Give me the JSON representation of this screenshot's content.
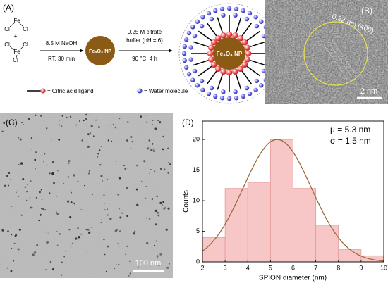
{
  "panel_a": {
    "label": "(A)",
    "reactant_atoms": [
      "Cl",
      "Fe",
      "Cl",
      "+",
      "Cl",
      "Fe",
      "Cl",
      "Cl"
    ],
    "step1": [
      "8.5 M NaOH",
      "RT, 30 min"
    ],
    "product1": "Fe₃O₄ NP",
    "step2": [
      "0.25 M citrate",
      "buffer (pH = 6)",
      "90 °C, 4 h"
    ],
    "product2": "Fe₃O₄ NP",
    "legend": [
      "= Citric acid ligand",
      "= Water molecule"
    ]
  },
  "panel_b": {
    "label": "(B)",
    "annotation": "0.22 nm (400)",
    "scale_bar": "2 nm"
  },
  "panel_c": {
    "label": "(C)",
    "scale_bar": "100 nm"
  },
  "chart_data": {
    "type": "histogram",
    "label": "(D)",
    "bins": [
      2,
      3,
      4,
      5,
      6,
      7,
      8,
      9,
      10
    ],
    "values": [
      4,
      12,
      13,
      20,
      12,
      6,
      2,
      1
    ],
    "xlabel": "SPION diameter (nm)",
    "ylabel": "Counts",
    "xlim": [
      2,
      10
    ],
    "ylim": [
      0,
      23
    ],
    "xticks": [
      2,
      3,
      4,
      5,
      6,
      7,
      8,
      9,
      10
    ],
    "yticks": [
      0,
      5,
      10,
      15,
      20
    ],
    "annotations": [
      "μ = 5.3 nm",
      "σ = 1.5 nm"
    ],
    "color": "#f7c6c6",
    "edge_color": "#e59a9a",
    "fit": {
      "mu": 5.3,
      "sigma": 1.5,
      "peak": 20,
      "color": "#9b6a3a"
    }
  }
}
